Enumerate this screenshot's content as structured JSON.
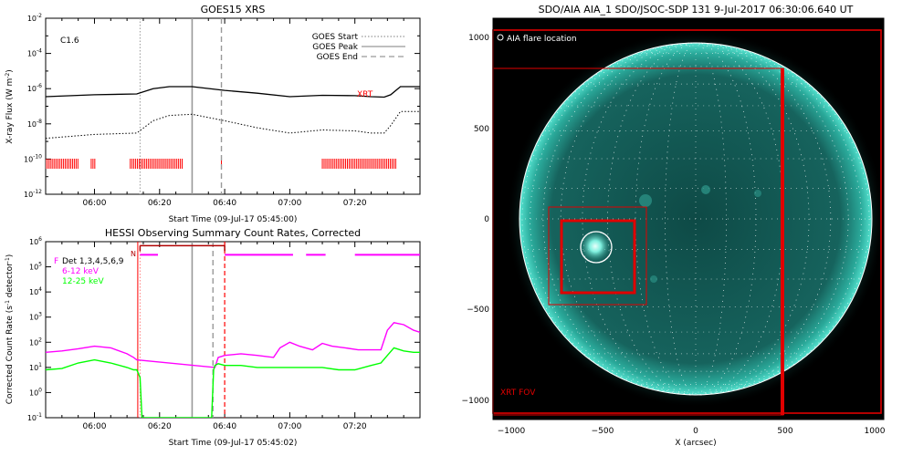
{
  "figure": {
    "panels": [
      {
        "id": "goes",
        "title": "GOES15 XRS",
        "class_label": "C1.6",
        "xrt_label": "XRT",
        "ylabel_main": "X-ray Flux (W m",
        "ylabel_sup": "-2",
        "ylabel_close": ")",
        "xlabel": "Start Time (09-Jul-17 05:45:00)",
        "x_ticks": [
          "06:00",
          "06:20",
          "06:40",
          "07:00",
          "07:20"
        ],
        "y_tick_exponents": [
          "-2",
          "-4",
          "-6",
          "-8",
          "-10",
          "-12"
        ],
        "legend": [
          {
            "label": "GOES Start",
            "style": "dotted"
          },
          {
            "label": "GOES Peak",
            "style": "solid"
          },
          {
            "label": "GOES End",
            "style": "dashed"
          }
        ],
        "colors": {
          "flux": "#000000",
          "marker": "#ff0000",
          "line": "#999999"
        }
      },
      {
        "id": "hessi",
        "title": "HESSI Observing Summary Count Rates, Corrected",
        "ylabel": "Corrected Count Rate (s",
        "ylabel_sup": "-1",
        "ylabel_tail": " detector",
        "ylabel_sup2": "-1",
        "ylabel_close": ")",
        "xlabel": "Start Time (09-Jul-17 05:45:02)",
        "x_ticks": [
          "06:00",
          "06:20",
          "06:40",
          "07:00",
          "07:20"
        ],
        "y_tick_exponents": [
          "6",
          "5",
          "4",
          "3",
          "2",
          "1",
          "0",
          "-1"
        ],
        "flag_labels": {
          "f": "F",
          "n": "N"
        },
        "legend": [
          {
            "label": "Det 1,3,4,5,6,9",
            "color": "#000000"
          },
          {
            "label": "6-12 keV",
            "color": "#ff00ff"
          },
          {
            "label": "12-25 keV",
            "color": "#00ff00"
          }
        ]
      },
      {
        "id": "aia",
        "title": "SDO/AIA AIA_1 SDO/JSOC-SDP 131  9-Jul-2017 06:30:06.640 UT",
        "flare_label": "AIA flare location",
        "fov_label": "XRT FOV",
        "xlabel": "X (arcsec)",
        "x_ticks": [
          "−1000",
          "−500",
          "0",
          "500",
          "1000"
        ],
        "y_ticks": [
          "1000",
          "500",
          "0",
          "−500",
          "−1000"
        ],
        "colors": {
          "disk": "#0f4d48",
          "limb": "#3fd8c4",
          "fov": "#e00000"
        }
      }
    ]
  },
  "chart_data": [
    {
      "type": "line",
      "title": "GOES15 XRS",
      "xlabel": "Start Time (09-Jul-17 05:45:00)",
      "ylabel": "X-ray Flux (W m^-2)",
      "y_scale": "log",
      "ylim": [
        1e-12,
        0.01
      ],
      "x_range_minutes_after_0545": [
        0,
        115
      ],
      "series": [
        {
          "style": "solid",
          "x": [
            0,
            15,
            28,
            33,
            38,
            45,
            55,
            65,
            75,
            85,
            95,
            100,
            104,
            106,
            109,
            113,
            115
          ],
          "y": [
            3.5e-07,
            4.5e-07,
            5e-07,
            1e-06,
            1.3e-06,
            1.3e-06,
            8e-07,
            5.5e-07,
            3.5e-07,
            4.2e-07,
            4e-07,
            3.5e-07,
            3.3e-07,
            4.5e-07,
            1.3e-06,
            1.3e-06,
            1.3e-06
          ]
        },
        {
          "style": "dotted",
          "x": [
            0,
            15,
            28,
            33,
            38,
            45,
            55,
            65,
            75,
            85,
            95,
            100,
            104,
            106,
            109,
            113,
            115
          ],
          "y": [
            1.5e-09,
            2.5e-09,
            3e-09,
            1.5e-08,
            3e-08,
            3.5e-08,
            1.5e-08,
            6e-09,
            3e-09,
            4.5e-09,
            4e-09,
            3e-09,
            3e-09,
            8e-09,
            5e-08,
            5e-08,
            5e-08
          ]
        }
      ],
      "vlines": {
        "start_min": 29,
        "peak_min": 45,
        "end_min": 54
      },
      "red_marker_blocks_min": [
        [
          0,
          10
        ],
        [
          14,
          15.5
        ],
        [
          26,
          42
        ],
        [
          54,
          54.4
        ],
        [
          85,
          108
        ]
      ]
    },
    {
      "type": "line",
      "title": "HESSI Observing Summary Count Rates, Corrected",
      "xlabel": "Start Time (09-Jul-17 05:45:02)",
      "ylabel": "Corrected Count Rate (s^-1 detector^-1)",
      "y_scale": "log",
      "ylim": [
        0.1,
        1000000.0
      ],
      "series": [
        {
          "name": "6-12 keV",
          "color": "#ff00ff",
          "x": [
            0,
            5,
            10,
            15,
            20,
            25,
            27,
            28,
            52,
            53,
            55,
            60,
            65,
            70,
            72,
            75,
            78,
            82,
            85,
            88,
            92,
            96,
            100,
            103,
            105,
            107,
            110,
            113,
            115
          ],
          "y": [
            40,
            45,
            55,
            70,
            60,
            35,
            25,
            20,
            10,
            25,
            30,
            35,
            30,
            25,
            60,
            100,
            70,
            50,
            90,
            70,
            60,
            50,
            50,
            50,
            300,
            600,
            500,
            300,
            250
          ]
        },
        {
          "name": "12-25 keV",
          "color": "#00ff00",
          "x": [
            0,
            5,
            10,
            15,
            20,
            25,
            27,
            28,
            29,
            29.6,
            51,
            51.6,
            52,
            53,
            55,
            60,
            65,
            70,
            75,
            80,
            85,
            90,
            95,
            100,
            103,
            105,
            107,
            110,
            113,
            115
          ],
          "y": [
            8,
            9,
            15,
            20,
            15,
            10,
            8,
            8,
            4,
            0.1,
            0.1,
            8,
            12,
            14,
            12,
            12,
            10,
            10,
            10,
            10,
            10,
            8,
            8,
            12,
            15,
            30,
            60,
            45,
            40,
            40
          ]
        }
      ],
      "attenuator_flag_y": 300000.0,
      "f_segments_min": [
        [
          29,
          34.5
        ],
        [
          55,
          76
        ],
        [
          80,
          86
        ],
        [
          95,
          115
        ]
      ],
      "n_segment_min": [
        29,
        55
      ],
      "vlines": {
        "red_solid_min": 28.3,
        "red_dotted_min": 29,
        "grey_solid_min": 45,
        "grey_dashed_min": 51.4,
        "red_dashed_min": 55
      }
    },
    {
      "type": "scatter",
      "title": "SDO/AIA AIA_1 SDO/JSOC-SDP 131  9-Jul-2017 06:30:06.640 UT",
      "xlabel": "X (arcsec)",
      "xlim": [
        -1100,
        1100
      ],
      "ylim": [
        -1100,
        1100
      ],
      "solar_radius_arcsec": 945,
      "flare_location_arcsec": [
        -540,
        -140
      ],
      "flare_contours_arcsec": [
        {
          "center": [
            -540,
            -140
          ],
          "radius": 70
        }
      ],
      "boxes_arcsec": [
        {
          "name": "XRT FOV",
          "x": [
            -1090,
            1030
          ],
          "y": [
            -1080,
            1030
          ]
        },
        {
          "name": "outer",
          "x": [
            -1090,
            480
          ],
          "y": [
            -1080,
            820
          ]
        },
        {
          "name": "medium",
          "x": [
            -790,
            -260
          ],
          "y": [
            -475,
            65
          ]
        },
        {
          "name": "inner",
          "x": [
            -720,
            -330
          ],
          "y": [
            -400,
            0
          ]
        }
      ]
    }
  ]
}
